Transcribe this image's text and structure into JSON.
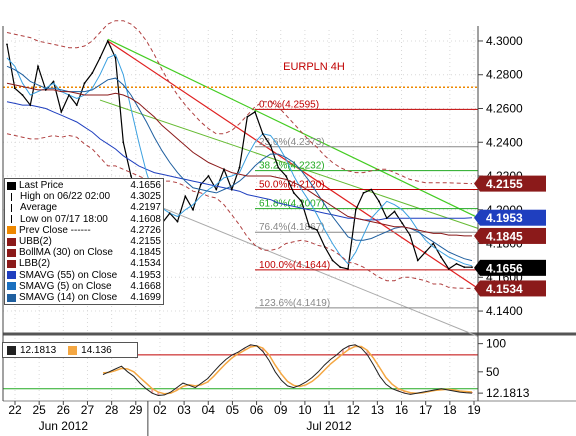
{
  "chart_data": {
    "type": "line",
    "title": "EURPLN 4H",
    "x_tick_labels": [
      "22",
      "25",
      "26",
      "27",
      "28",
      "29",
      "02",
      "03",
      "04",
      "05",
      "06",
      "09",
      "10",
      "11",
      "12",
      "13",
      "16",
      "17",
      "18",
      "19"
    ],
    "month_labels": [
      {
        "label": "Jun 2012",
        "at": "26"
      },
      {
        "label": "Jul 2012",
        "at": "11"
      }
    ],
    "y_tick_labels": [
      "4.1400",
      "4.1600",
      "4.1800",
      "4.2000",
      "4.2200",
      "4.2400",
      "4.2600",
      "4.2800",
      "4.3000"
    ],
    "ylim": [
      4.127,
      4.3065
    ],
    "price_badges": [
      {
        "value": "4.2155",
        "color": "#8b1a1a",
        "y": 4.2155
      },
      {
        "value": "4.1953",
        "color": "#1f3fbf",
        "y": 4.1953
      },
      {
        "value": "4.1845",
        "color": "#8b1a1a",
        "y": 4.1845
      },
      {
        "value": "4.1656",
        "color": "#000000",
        "y": 4.1656
      },
      {
        "value": "4.1534",
        "color": "#8b1a1a",
        "y": 4.1534
      }
    ],
    "fib_levels": [
      {
        "label": "0.0%(4.2595)",
        "value": 4.2595,
        "color": "#c00000"
      },
      {
        "label": "23.6%(4.2373)",
        "value": 4.2373,
        "color": "#888888"
      },
      {
        "label": "38.2%(4.2232)",
        "value": 4.2232,
        "color": "#22aa22"
      },
      {
        "label": "50.0%(4.2120)",
        "value": 4.212,
        "color": "#c00000"
      },
      {
        "label": "61.8%(4.2007)",
        "value": 4.2007,
        "color": "#22aa22"
      },
      {
        "label": "76.4%(4.1867)",
        "value": 4.1867,
        "color": "#888888"
      },
      {
        "label": "100.0%(4.1644)",
        "value": 4.1644,
        "color": "#c00000"
      },
      {
        "label": "123.6%(4.1419)",
        "value": 4.1419,
        "color": "#888888"
      }
    ],
    "prev_close": 4.2726,
    "series": [
      {
        "name": "Last Price",
        "values": [
          4.298,
          4.272,
          4.268,
          4.262,
          4.285,
          4.271,
          4.276,
          4.258,
          4.268,
          4.262,
          4.275,
          4.281,
          4.29,
          4.3,
          4.29,
          4.24,
          4.22,
          4.205,
          4.207,
          4.2,
          4.192,
          4.198,
          4.193,
          4.208,
          4.2,
          4.215,
          4.22,
          4.212,
          4.224,
          4.212,
          4.225,
          4.255,
          4.258,
          4.245,
          4.238,
          4.225,
          4.22,
          4.21,
          4.205,
          4.19,
          4.188,
          4.178,
          4.17,
          4.166,
          4.165,
          4.2,
          4.21,
          4.212,
          4.205,
          4.195,
          4.199,
          4.192,
          4.185,
          4.17,
          4.175,
          4.18,
          4.172,
          4.165,
          4.168,
          4.166,
          4.166
        ]
      },
      {
        "name": "SMAVG (55) on Close",
        "values": [
          4.264,
          4.263,
          4.262,
          4.262,
          4.261,
          4.26,
          4.258,
          4.256,
          4.254,
          4.252,
          4.249,
          4.246,
          4.242,
          4.239,
          4.236,
          4.232,
          4.229,
          4.226,
          4.224,
          4.222,
          4.221,
          4.22,
          4.219,
          4.218,
          4.217,
          4.216,
          4.215,
          4.214,
          4.213,
          4.212,
          4.211,
          4.209,
          4.208,
          4.207,
          4.206,
          4.204,
          4.203,
          4.202,
          4.201,
          4.2,
          4.199,
          4.198,
          4.197,
          4.196,
          4.195,
          4.195,
          4.194,
          4.194,
          4.194,
          4.195,
          4.195,
          4.195,
          4.195,
          4.195,
          4.195,
          4.195,
          4.195,
          4.195,
          4.195,
          4.195,
          4.1953
        ]
      },
      {
        "name": "SMAVG (5) on Close",
        "values": [
          4.29,
          4.285,
          4.275,
          4.268,
          4.27,
          4.272,
          4.275,
          4.27,
          4.268,
          4.266,
          4.268,
          4.272,
          4.28,
          4.29,
          4.292,
          4.28,
          4.26,
          4.24,
          4.222,
          4.208,
          4.201,
          4.198,
          4.196,
          4.2,
          4.203,
          4.208,
          4.212,
          4.215,
          4.219,
          4.22,
          4.222,
          4.232,
          4.24,
          4.245,
          4.244,
          4.238,
          4.23,
          4.22,
          4.212,
          4.205,
          4.197,
          4.188,
          4.18,
          4.173,
          4.168,
          4.175,
          4.185,
          4.195,
          4.2,
          4.205,
          4.203,
          4.2,
          4.195,
          4.188,
          4.182,
          4.178,
          4.175,
          4.172,
          4.17,
          4.168,
          4.1668
        ]
      },
      {
        "name": "SMAVG (14) on Close",
        "values": [
          4.285,
          4.283,
          4.28,
          4.276,
          4.274,
          4.272,
          4.272,
          4.271,
          4.27,
          4.27,
          4.27,
          4.271,
          4.274,
          4.277,
          4.278,
          4.274,
          4.268,
          4.26,
          4.252,
          4.243,
          4.235,
          4.228,
          4.222,
          4.217,
          4.213,
          4.212,
          4.211,
          4.21,
          4.212,
          4.214,
          4.217,
          4.221,
          4.226,
          4.23,
          4.233,
          4.233,
          4.231,
          4.228,
          4.223,
          4.217,
          4.21,
          4.203,
          4.196,
          4.19,
          4.184,
          4.182,
          4.182,
          4.183,
          4.185,
          4.187,
          4.189,
          4.19,
          4.189,
          4.187,
          4.184,
          4.181,
          4.178,
          4.175,
          4.173,
          4.171,
          4.1699
        ]
      },
      {
        "name": "BollMA (30) on Close",
        "values": [
          4.275,
          4.274,
          4.273,
          4.272,
          4.271,
          4.271,
          4.271,
          4.27,
          4.27,
          4.269,
          4.268,
          4.268,
          4.268,
          4.268,
          4.269,
          4.268,
          4.266,
          4.263,
          4.259,
          4.255,
          4.25,
          4.246,
          4.242,
          4.238,
          4.234,
          4.231,
          4.228,
          4.226,
          4.224,
          4.222,
          4.221,
          4.22,
          4.22,
          4.22,
          4.22,
          4.219,
          4.218,
          4.216,
          4.214,
          4.211,
          4.208,
          4.205,
          4.202,
          4.199,
          4.196,
          4.195,
          4.194,
          4.193,
          4.192,
          4.191,
          4.19,
          4.19,
          4.189,
          4.188,
          4.187,
          4.186,
          4.186,
          4.185,
          4.185,
          4.1845,
          4.1845
        ]
      },
      {
        "name": "UBB(2)",
        "values": [
          4.305,
          4.304,
          4.303,
          4.302,
          4.3,
          4.299,
          4.298,
          4.297,
          4.296,
          4.296,
          4.297,
          4.3,
          4.305,
          4.31,
          4.312,
          4.312,
          4.31,
          4.306,
          4.3,
          4.292,
          4.283,
          4.275,
          4.268,
          4.262,
          4.257,
          4.252,
          4.248,
          4.245,
          4.245,
          4.247,
          4.251,
          4.256,
          4.261,
          4.264,
          4.264,
          4.261,
          4.256,
          4.251,
          4.246,
          4.241,
          4.237,
          4.232,
          4.228,
          4.225,
          4.223,
          4.222,
          4.222,
          4.223,
          4.224,
          4.224,
          4.222,
          4.22,
          4.218,
          4.217,
          4.216,
          4.216,
          4.216,
          4.216,
          4.2158,
          4.2156,
          4.2155
        ]
      },
      {
        "name": "LBB(2)",
        "values": [
          4.245,
          4.244,
          4.243,
          4.242,
          4.242,
          4.243,
          4.244,
          4.243,
          4.244,
          4.243,
          4.239,
          4.236,
          4.231,
          4.226,
          4.226,
          4.224,
          4.222,
          4.22,
          4.218,
          4.218,
          4.217,
          4.217,
          4.216,
          4.214,
          4.211,
          4.21,
          4.208,
          4.207,
          4.203,
          4.197,
          4.191,
          4.184,
          4.179,
          4.176,
          4.176,
          4.177,
          4.18,
          4.181,
          4.182,
          4.181,
          4.179,
          4.178,
          4.176,
          4.173,
          4.169,
          4.168,
          4.166,
          4.163,
          4.16,
          4.158,
          4.158,
          4.16,
          4.16,
          4.159,
          4.158,
          4.156,
          4.156,
          4.154,
          4.1536,
          4.1535,
          4.1534
        ]
      }
    ],
    "legend": [
      {
        "label": "Last Price",
        "value": "4.1656",
        "color": "#000000",
        "icon": "black-square"
      },
      {
        "label": "High on 06/22 02:00",
        "value": "4.3025",
        "color": "#000000",
        "icon": "high-marker"
      },
      {
        "label": "Average",
        "value": "4.2197",
        "color": "#000000",
        "icon": "average-marker"
      },
      {
        "label": "Low on 07/17 18:00",
        "value": "4.1608",
        "color": "#000000",
        "icon": "low-marker"
      },
      {
        "label": "Prev Close ------",
        "value": "4.2726",
        "color": "#ee8800",
        "icon": "orange-square"
      },
      {
        "label": "UBB(2)",
        "value": "4.2155",
        "color": "#8b1a1a",
        "icon": "darkred-square"
      },
      {
        "label": "BollMA (30) on Close",
        "value": "4.1845",
        "color": "#8b1a1a",
        "icon": "darkred-square"
      },
      {
        "label": "LBB(2)",
        "value": "4.1534",
        "color": "#8b1a1a",
        "icon": "darkred-square"
      },
      {
        "label": "SMAVG (55) on Close",
        "value": "4.1953",
        "color": "#1f3fbf",
        "icon": "blue-square"
      },
      {
        "label": "SMAVG (5) on Close",
        "value": "4.1668",
        "color": "#1a6fbf",
        "icon": "blue-square"
      },
      {
        "label": "SMAVG (14) on Close",
        "value": "4.1699",
        "color": "#1f5f9f",
        "icon": "blue-square"
      }
    ],
    "indicator": {
      "legend": [
        {
          "label": "12.1813",
          "color": "#222222"
        },
        {
          "label": "14.136",
          "color": "#f4a742"
        }
      ],
      "y_tick_labels": [
        "100",
        "50",
        "12.1813"
      ],
      "ylim": [
        0,
        110
      ],
      "levels": [
        80,
        20
      ],
      "series": [
        {
          "name": "12.1813",
          "values": [
            45,
            50,
            55,
            60,
            50,
            42,
            30,
            20,
            12,
            8,
            9,
            14,
            22,
            30,
            26,
            22,
            30,
            38,
            50,
            62,
            72,
            80,
            85,
            92,
            98,
            96,
            86,
            70,
            50,
            35,
            25,
            22,
            26,
            32,
            40,
            50,
            62,
            72,
            80,
            90,
            96,
            98,
            92,
            80,
            62,
            42,
            28,
            20,
            16,
            12,
            10,
            12,
            14,
            16,
            18,
            20,
            18,
            16,
            14,
            13,
            12.18
          ]
        },
        {
          "name": "14.136",
          "values": [
            48,
            49,
            52,
            56,
            55,
            50,
            40,
            30,
            20,
            14,
            11,
            12,
            17,
            24,
            27,
            25,
            27,
            32,
            42,
            54,
            65,
            75,
            82,
            88,
            94,
            96,
            92,
            80,
            62,
            46,
            33,
            26,
            24,
            27,
            33,
            42,
            53,
            64,
            73,
            82,
            90,
            95,
            95,
            88,
            74,
            57,
            40,
            28,
            20,
            16,
            13,
            12,
            13,
            15,
            17,
            18,
            19,
            18,
            16,
            15,
            14.14
          ]
        }
      ]
    }
  }
}
